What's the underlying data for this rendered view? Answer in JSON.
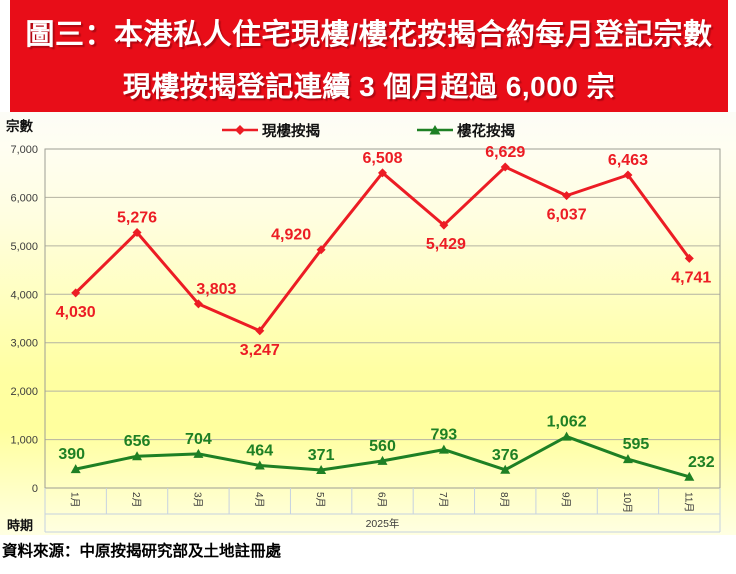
{
  "title": {
    "line1": "圖三：本港私人住宅現樓/樓花按揭合約每月登記宗數",
    "line2": "現樓按揭登記連續 3 個月超過 6,000 宗"
  },
  "axis_labels": {
    "y": "宗數",
    "x": "時期"
  },
  "footer": {
    "source": "資料來源：中原按揭研究部及土地註冊處"
  },
  "colors": {
    "header_bg": "#e80d18",
    "header_text": "#ffffff",
    "plot_border": "#9e9e94",
    "gridline": "#b4b3a2",
    "band_line": "#c6d2e0",
    "tick_text": "#3c3c3c",
    "series_existing": "#ec1c24",
    "series_presale": "#1e8024"
  },
  "chart_data": {
    "type": "line",
    "title": "本港私人住宅現樓/樓花按揭合約每月登記宗數",
    "xlabel": "時期",
    "ylabel": "宗數",
    "x_group_label": "2025年",
    "categories": [
      "1月",
      "2月",
      "3月",
      "4月",
      "5月",
      "6月",
      "7月",
      "8月",
      "9月",
      "10月",
      "11月"
    ],
    "ylim": [
      0,
      7000
    ],
    "ytick_step": 1000,
    "grid": true,
    "legend_position": "top",
    "series": [
      {
        "name": "現樓按揭",
        "marker": "diamond",
        "color": "#ec1c24",
        "values": [
          4030,
          5276,
          3803,
          3247,
          4920,
          6508,
          5429,
          6629,
          6037,
          6463,
          4741
        ],
        "label_positions": [
          "below",
          "above",
          "above",
          "below",
          "above",
          "above",
          "below",
          "above",
          "below",
          "above",
          "below"
        ],
        "label_dx": [
          0,
          0,
          18,
          0,
          -30,
          0,
          2,
          0,
          0,
          0,
          2
        ]
      },
      {
        "name": "樓花按揭",
        "marker": "triangle",
        "color": "#1e8024",
        "values": [
          390,
          656,
          704,
          464,
          371,
          560,
          793,
          376,
          1062,
          595,
          232
        ],
        "label_positions": [
          "above",
          "above",
          "above",
          "above",
          "above",
          "above",
          "above",
          "above",
          "above",
          "above",
          "above"
        ],
        "label_dx": [
          -4,
          0,
          0,
          0,
          0,
          0,
          0,
          0,
          0,
          8,
          12
        ]
      }
    ]
  }
}
